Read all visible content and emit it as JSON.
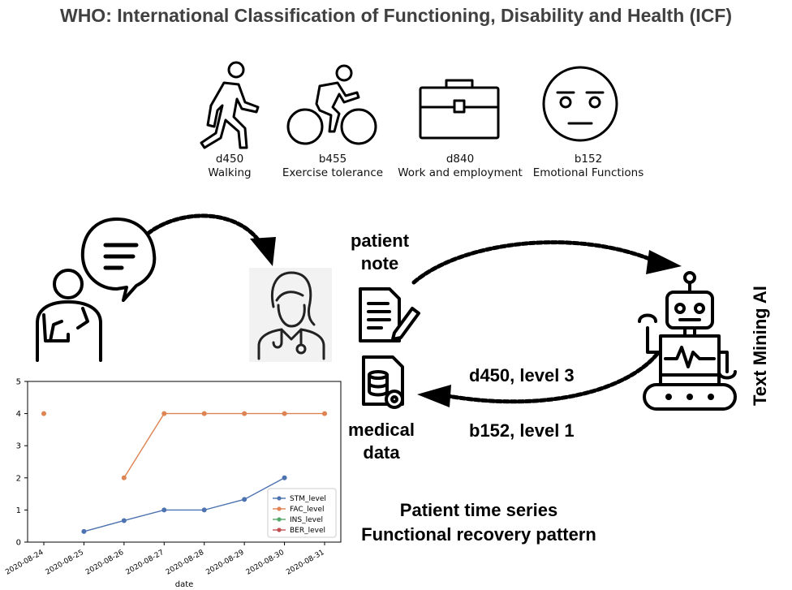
{
  "title": "WHO: International Classification of Functioning, Disability and Health (ICF)",
  "icf_items": [
    {
      "code": "d450",
      "name": "Walking",
      "icon": "walking-person-icon"
    },
    {
      "code": "b455",
      "name": "Exercise tolerance",
      "icon": "cyclist-icon"
    },
    {
      "code": "d840",
      "name": "Work and employment",
      "icon": "briefcase-icon"
    },
    {
      "code": "b152",
      "name": "Emotional Functions",
      "icon": "neutral-face-icon"
    }
  ],
  "labels": {
    "patient_note": "patient note",
    "patient_note_line1": "patient",
    "patient_note_line2": "note",
    "medical_data_line1": "medical",
    "medical_data_line2": "data",
    "annotation_1": "d450, level 3",
    "annotation_2": "b152, level 1",
    "text_mining": "Text Mining AI",
    "series_caption_1": "Patient time series",
    "series_caption_2": "Functional recovery pattern"
  },
  "chart_data": {
    "type": "line",
    "xlabel": "date",
    "ylabel": "",
    "x": [
      "2020-08-24",
      "2020-08-25",
      "2020-08-26",
      "2020-08-27",
      "2020-08-28",
      "2020-08-29",
      "2020-08-30",
      "2020-08-31"
    ],
    "ylim": [
      0,
      5
    ],
    "yticks": [
      0,
      1,
      2,
      3,
      4,
      5
    ],
    "grid": false,
    "legend_position": "bottom-right",
    "series": [
      {
        "name": "STM_level",
        "color": "#4c72b0",
        "values": [
          null,
          0.33,
          0.67,
          1.0,
          1.0,
          1.33,
          2.0,
          null
        ]
      },
      {
        "name": "FAC_level",
        "color": "#dd8452",
        "values": [
          4,
          null,
          2,
          4,
          4,
          4,
          4,
          4
        ]
      },
      {
        "name": "INS_level",
        "color": "#55a868",
        "values": [
          null,
          null,
          null,
          null,
          null,
          null,
          null,
          null
        ]
      },
      {
        "name": "BER_level",
        "color": "#c44e52",
        "values": [
          null,
          null,
          null,
          null,
          null,
          null,
          null,
          null
        ]
      }
    ]
  }
}
